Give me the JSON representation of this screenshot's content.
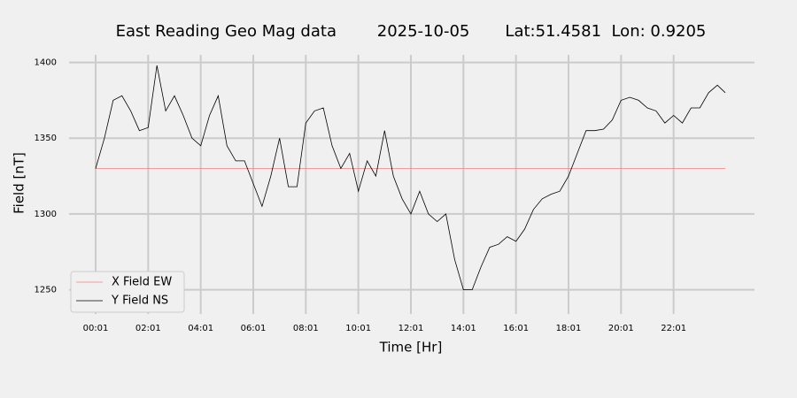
{
  "chart_data": {
    "type": "line",
    "title": "East Reading Geo Mag data        2025-10-05       Lat:51.4581  Lon: 0.9205",
    "x_label": "Time  [Hr]",
    "y_label": "Field  [nT]",
    "x": [
      "00:01",
      "00:21",
      "00:41",
      "01:01",
      "01:21",
      "01:41",
      "02:01",
      "02:21",
      "02:41",
      "03:01",
      "03:21",
      "03:41",
      "04:01",
      "04:21",
      "04:41",
      "05:01",
      "05:21",
      "05:41",
      "06:01",
      "06:21",
      "06:41",
      "07:01",
      "07:21",
      "07:41",
      "08:01",
      "08:21",
      "08:41",
      "09:01",
      "09:21",
      "09:41",
      "10:01",
      "10:21",
      "10:41",
      "11:01",
      "11:21",
      "11:41",
      "12:01",
      "12:21",
      "12:41",
      "13:01",
      "13:21",
      "13:41",
      "14:01",
      "14:21",
      "14:41",
      "15:01",
      "15:21",
      "15:41",
      "16:01",
      "16:21",
      "16:41",
      "17:01",
      "17:21",
      "17:41",
      "18:01",
      "18:21",
      "18:41",
      "19:01",
      "19:21",
      "19:41",
      "20:01",
      "20:21",
      "20:41",
      "21:01",
      "21:21",
      "21:41",
      "22:01",
      "22:21",
      "22:41",
      "23:01",
      "23:21",
      "23:41",
      "23:59"
    ],
    "series": [
      {
        "name": "X Field EW",
        "color": "#f08080",
        "values": [
          1330,
          1330,
          1330,
          1330,
          1330,
          1330,
          1330,
          1330,
          1330,
          1330,
          1330,
          1330,
          1330,
          1330,
          1330,
          1330,
          1330,
          1330,
          1330,
          1330,
          1330,
          1330,
          1330,
          1330,
          1330,
          1330,
          1330,
          1330,
          1330,
          1330,
          1330,
          1330,
          1330,
          1330,
          1330,
          1330,
          1330,
          1330,
          1330,
          1330,
          1330,
          1330,
          1330,
          1330,
          1330,
          1330,
          1330,
          1330,
          1330,
          1330,
          1330,
          1330,
          1330,
          1330,
          1330,
          1330,
          1330,
          1330,
          1330,
          1330,
          1330,
          1330,
          1330,
          1330,
          1330,
          1330,
          1330,
          1330,
          1330,
          1330,
          1330,
          1330,
          1330
        ]
      },
      {
        "name": "Y Field NS",
        "color": "#000000",
        "values": [
          1330,
          1350,
          1375,
          1378,
          1368,
          1355,
          1357,
          1398,
          1368,
          1378,
          1365,
          1350,
          1345,
          1365,
          1378,
          1345,
          1335,
          1335,
          1320,
          1305,
          1325,
          1350,
          1318,
          1318,
          1360,
          1368,
          1370,
          1345,
          1330,
          1340,
          1315,
          1335,
          1325,
          1355,
          1325,
          1310,
          1300,
          1315,
          1300,
          1295,
          1300,
          1270,
          1250,
          1250,
          1265,
          1278,
          1280,
          1285,
          1282,
          1290,
          1303,
          1310,
          1313,
          1315,
          1325,
          1340,
          1355,
          1355,
          1356,
          1362,
          1375,
          1377,
          1375,
          1370,
          1368,
          1360,
          1365,
          1360,
          1370,
          1370,
          1380,
          1385,
          1380
        ]
      }
    ],
    "xlim": [
      "00:01",
      "23:59"
    ],
    "xticks": [
      "00:01",
      "02:01",
      "04:01",
      "06:01",
      "08:01",
      "10:01",
      "12:01",
      "14:01",
      "16:01",
      "18:01",
      "20:01",
      "22:01"
    ],
    "ylim": [
      1234,
      1405
    ],
    "yticks": [
      1250,
      1300,
      1350,
      1400
    ],
    "grid": true,
    "legend": "lower left"
  }
}
